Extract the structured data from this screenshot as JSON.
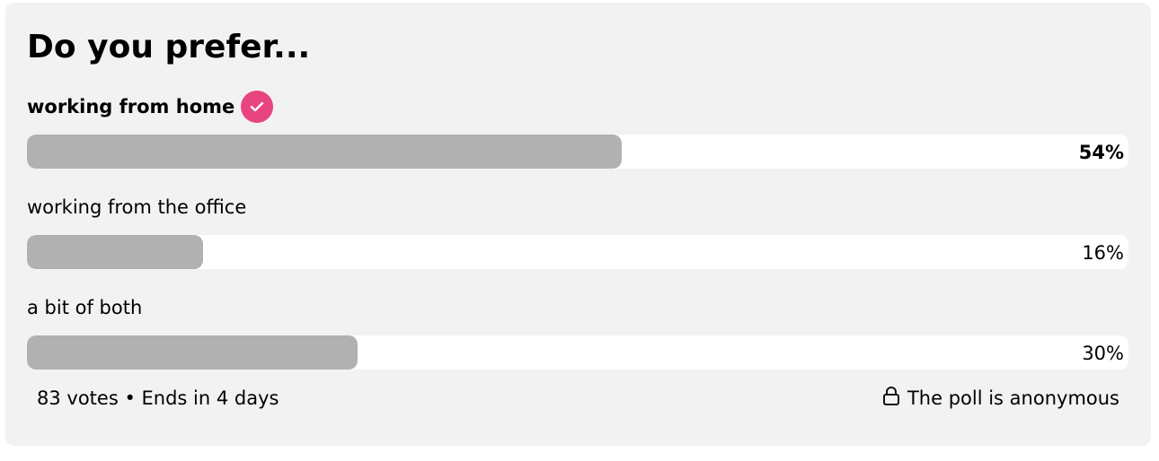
{
  "poll": {
    "title": "Do you prefer...",
    "options": [
      {
        "label": "working from home",
        "percent_label": "54%",
        "percent": 54,
        "selected": true
      },
      {
        "label": "working from the office",
        "percent_label": "16%",
        "percent": 16,
        "selected": false
      },
      {
        "label": "a bit of both",
        "percent_label": "30%",
        "percent": 30,
        "selected": false
      }
    ],
    "footer": {
      "meta": "83 votes • Ends in 4 days",
      "anonymous": "The poll is anonymous"
    },
    "icons": {
      "selected": "check-icon",
      "anonymous": "lock-icon"
    },
    "colors": {
      "card_background": "#f2f2f2",
      "bar_fill": "#b1b1b1",
      "bar_track": "#ffffff",
      "check_badge": "#e8447f"
    }
  }
}
